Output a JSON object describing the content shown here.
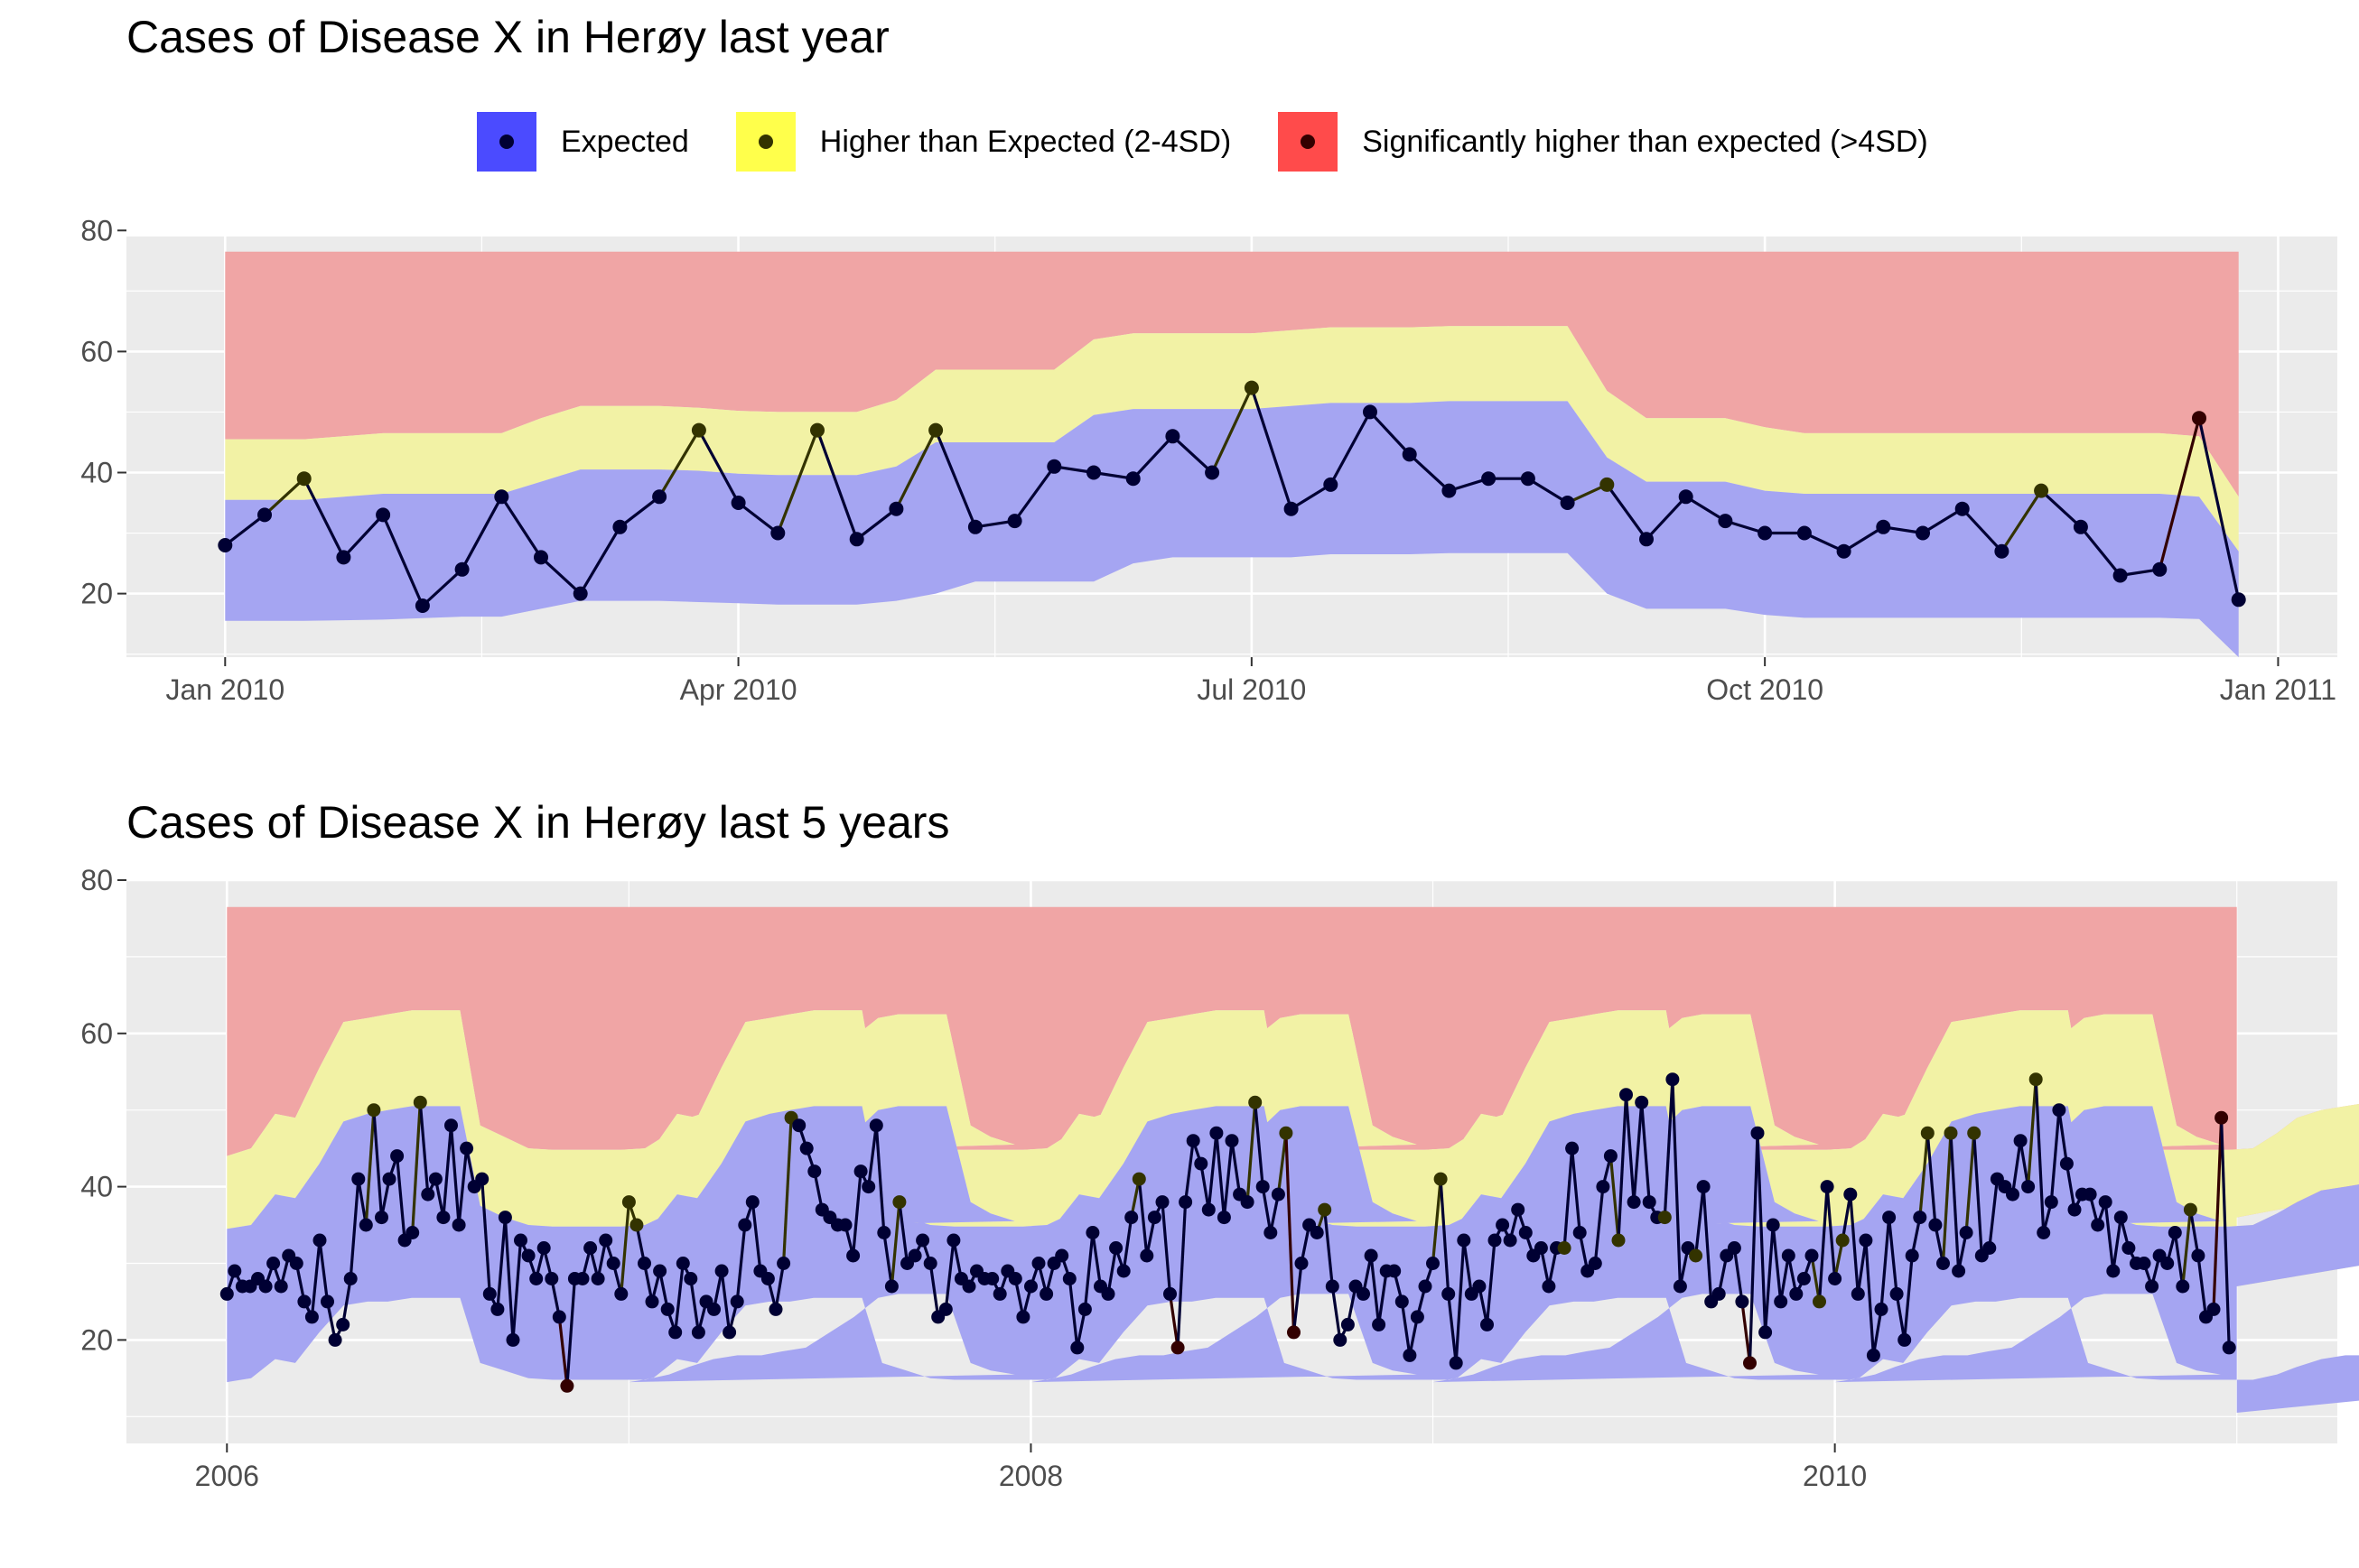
{
  "colors": {
    "panel_bg": "#EBEBEB",
    "grid": "#FFFFFF",
    "expected": "#4B4BFF",
    "higher": "#FFFF4B",
    "significant": "#FF4B4B",
    "expected_band": "#A5A5F2",
    "higher_band": "#F2F2A5",
    "significant_band": "#F0A5A5",
    "dot_expected": "#000033",
    "dot_higher": "#333300",
    "dot_significant": "#330000",
    "line": "#000033"
  },
  "legend": {
    "items": [
      {
        "label": "Expected",
        "key": "expected"
      },
      {
        "label": "Higher than Expected (2-4SD)",
        "key": "higher"
      },
      {
        "label": "Significantly higher than expected (>4SD)",
        "key": "significant"
      }
    ]
  },
  "chart_data": [
    {
      "type": "line",
      "title": "Cases of Disease X in Herøy last year",
      "xlabel": "",
      "ylabel": "",
      "x_axis": {
        "ticks": [
          "Jan 2010",
          "Apr 2010",
          "Jul 2010",
          "Oct 2010",
          "Jan 2011"
        ],
        "major_weeks": [
          0,
          13,
          26,
          39,
          52
        ],
        "minor_weeks": [
          6.5,
          19.5,
          32.5,
          45.5
        ],
        "xlim_weeks": [
          -2.5,
          53.5
        ]
      },
      "ylim": [
        9.5,
        79
      ],
      "y_ticks": [
        20,
        40,
        60,
        80
      ],
      "grid": true,
      "series": [
        {
          "key": "cases",
          "x_weeks": [
            0,
            1,
            2,
            3,
            4,
            5,
            6,
            7,
            8,
            9,
            10,
            11,
            12,
            13,
            14,
            15,
            16,
            17,
            18,
            19,
            20,
            21,
            22,
            23,
            24,
            25,
            26,
            27,
            28,
            29,
            30,
            31,
            32,
            33,
            34,
            35,
            36,
            37,
            38,
            39,
            40,
            41,
            42,
            43,
            44,
            45,
            46,
            47,
            48,
            49,
            50,
            51
          ],
          "values": [
            28,
            33,
            39,
            26,
            33,
            18,
            24,
            36,
            26,
            20,
            31,
            36,
            47,
            35,
            30,
            47,
            29,
            34,
            47,
            31,
            32,
            41,
            40,
            39,
            46,
            40,
            54,
            34,
            38,
            50,
            43,
            37,
            39,
            39,
            35,
            38,
            29,
            36,
            32,
            30,
            30,
            27,
            31,
            30,
            34,
            27,
            37,
            31,
            23,
            24,
            49,
            19
          ],
          "status": [
            "e",
            "e",
            "h",
            "e",
            "e",
            "e",
            "e",
            "e",
            "e",
            "e",
            "e",
            "e",
            "h",
            "e",
            "e",
            "h",
            "e",
            "e",
            "h",
            "e",
            "e",
            "e",
            "e",
            "e",
            "e",
            "e",
            "h",
            "e",
            "e",
            "e",
            "e",
            "e",
            "e",
            "e",
            "e",
            "h",
            "e",
            "e",
            "e",
            "e",
            "e",
            "e",
            "e",
            "e",
            "e",
            "e",
            "h",
            "e",
            "e",
            "e",
            "s",
            "e"
          ]
        }
      ],
      "bands": {
        "x_weeks": [
          0,
          2,
          4,
          6,
          7,
          8,
          9,
          10,
          11,
          12,
          13,
          14,
          15,
          16,
          17,
          18,
          19,
          20,
          21,
          22,
          23,
          24,
          25,
          26,
          27,
          28,
          29,
          30,
          31,
          32,
          33,
          34,
          35,
          36,
          37,
          38,
          39,
          40,
          41,
          42,
          43,
          44,
          45,
          46,
          47,
          48,
          49,
          50,
          51
        ],
        "lower": [
          15.5,
          15.5,
          15.7,
          16.2,
          16.2,
          17.5,
          18.8,
          18.8,
          18.8,
          18.6,
          18.4,
          18.2,
          18.2,
          18.2,
          18.8,
          20,
          22,
          22,
          22,
          22,
          25,
          26,
          26,
          26,
          26,
          26.5,
          26.5,
          26.5,
          26.7,
          26.7,
          26.7,
          26.7,
          20,
          17.5,
          17.5,
          17.5,
          16.5,
          16,
          16,
          16,
          16,
          16,
          16,
          16,
          16,
          16,
          16,
          15.8,
          9.5
        ],
        "mid": [
          35.5,
          35.5,
          36.5,
          36.5,
          36.5,
          38.5,
          40.5,
          40.5,
          40.5,
          40.3,
          39.8,
          39.6,
          39.6,
          39.6,
          41,
          45,
          45,
          45,
          45,
          49.5,
          50.5,
          50.5,
          50.5,
          50.5,
          51,
          51.5,
          51.5,
          51.5,
          51.8,
          51.8,
          51.8,
          51.8,
          42.5,
          38.5,
          38.5,
          38.5,
          37,
          36.5,
          36.5,
          36.5,
          36.5,
          36.5,
          36.5,
          36.5,
          36.5,
          36.5,
          36.5,
          36,
          27
        ],
        "upper": [
          45.5,
          45.5,
          46.5,
          46.5,
          46.5,
          49,
          51,
          51,
          51,
          50.7,
          50.2,
          50,
          50,
          50,
          52,
          57,
          57,
          57,
          57,
          62,
          63,
          63,
          63,
          63,
          63.5,
          64,
          64,
          64,
          64.2,
          64.2,
          64.2,
          64.2,
          53.5,
          49,
          49,
          49,
          47.5,
          46.5,
          46.5,
          46.5,
          46.5,
          46.5,
          46.5,
          46.5,
          46.5,
          46.5,
          46.5,
          46,
          36
        ],
        "top": 76.5
      }
    },
    {
      "type": "line",
      "title": "Cases of Disease X in Herøy last 5 years",
      "xlabel": "",
      "ylabel": "",
      "x_axis": {
        "ticks": [
          "2006",
          "2008",
          "2010"
        ],
        "major_years": [
          2006,
          2008,
          2010
        ],
        "minor_years": [
          2007,
          2009,
          2011
        ],
        "xlim_years": [
          2005.75,
          2011.25
        ]
      },
      "ylim": [
        6.5,
        80
      ],
      "y_ticks": [
        20,
        40,
        60,
        80
      ],
      "grid": true,
      "year_start": 2006,
      "series": [
        {
          "key": "cases",
          "weeks_per_year": 52,
          "values": [
            26,
            29,
            27,
            27,
            28,
            27,
            30,
            27,
            31,
            30,
            25,
            23,
            33,
            25,
            20,
            22,
            28,
            41,
            35,
            50,
            36,
            41,
            44,
            33,
            34,
            51,
            39,
            41,
            36,
            48,
            35,
            45,
            40,
            41,
            26,
            24,
            36,
            20,
            33,
            31,
            28,
            32,
            28,
            23,
            14,
            28,
            28,
            32,
            28,
            33,
            30,
            26,
            38,
            35,
            30,
            25,
            29,
            24,
            21,
            30,
            28,
            21,
            25,
            24,
            29,
            21,
            25,
            35,
            38,
            29,
            28,
            24,
            30,
            49,
            48,
            45,
            42,
            37,
            36,
            35,
            35,
            31,
            42,
            40,
            48,
            34,
            27,
            38,
            30,
            31,
            33,
            30,
            23,
            24,
            33,
            28,
            27,
            29,
            28,
            28,
            26,
            29,
            28,
            23,
            27,
            30,
            26,
            30,
            31,
            28,
            19,
            24,
            34,
            27,
            26,
            32,
            29,
            36,
            41,
            31,
            36,
            38,
            26,
            19,
            38,
            46,
            43,
            37,
            47,
            36,
            46,
            39,
            38,
            51,
            40,
            34,
            39,
            47,
            21,
            30,
            35,
            34,
            37,
            27,
            20,
            22,
            27,
            26,
            31,
            22,
            29,
            29,
            25,
            18,
            23,
            27,
            30,
            41,
            26,
            17,
            33,
            26,
            27,
            22,
            33,
            35,
            33,
            37,
            34,
            31,
            32,
            27,
            32,
            32,
            45,
            34,
            29,
            30,
            40,
            44,
            33,
            52,
            38,
            51,
            38,
            36,
            36,
            54,
            27,
            32,
            31,
            40,
            25,
            26,
            31,
            32,
            25,
            17,
            47,
            21,
            35,
            25,
            31,
            26,
            28,
            31,
            25,
            40,
            28,
            33,
            39,
            26,
            33,
            18,
            24,
            36,
            26,
            20,
            31,
            36,
            47,
            35,
            30,
            47,
            29,
            34,
            47,
            31,
            32,
            41,
            40,
            39,
            46,
            40,
            54,
            34,
            38,
            50,
            43,
            37,
            39,
            39,
            35,
            38,
            29,
            36,
            32,
            30,
            30,
            27,
            31,
            30,
            34,
            27,
            37,
            31,
            23,
            24,
            49,
            19
          ],
          "status": [
            "e",
            "e",
            "e",
            "e",
            "e",
            "e",
            "e",
            "e",
            "e",
            "e",
            "e",
            "e",
            "e",
            "e",
            "e",
            "e",
            "e",
            "e",
            "e",
            "h",
            "e",
            "e",
            "e",
            "e",
            "e",
            "h",
            "e",
            "e",
            "e",
            "e",
            "e",
            "e",
            "e",
            "e",
            "e",
            "e",
            "e",
            "e",
            "e",
            "e",
            "e",
            "e",
            "e",
            "e",
            "s",
            "e",
            "e",
            "e",
            "e",
            "e",
            "e",
            "e",
            "h",
            "h",
            "e",
            "e",
            "e",
            "e",
            "e",
            "e",
            "e",
            "e",
            "e",
            "e",
            "e",
            "e",
            "e",
            "e",
            "e",
            "e",
            "e",
            "e",
            "e",
            "h",
            "e",
            "e",
            "e",
            "e",
            "e",
            "e",
            "e",
            "e",
            "e",
            "e",
            "e",
            "e",
            "e",
            "h",
            "e",
            "e",
            "e",
            "e",
            "e",
            "e",
            "e",
            "e",
            "e",
            "e",
            "e",
            "e",
            "e",
            "e",
            "e",
            "e",
            "e",
            "e",
            "e",
            "e",
            "e",
            "e",
            "e",
            "e",
            "e",
            "e",
            "e",
            "e",
            "e",
            "e",
            "h",
            "e",
            "e",
            "e",
            "e",
            "s",
            "e",
            "e",
            "e",
            "e",
            "e",
            "e",
            "e",
            "e",
            "e",
            "h",
            "e",
            "e",
            "e",
            "h",
            "s",
            "e",
            "e",
            "e",
            "h",
            "e",
            "e",
            "e",
            "e",
            "e",
            "e",
            "e",
            "e",
            "e",
            "e",
            "e",
            "e",
            "e",
            "e",
            "h",
            "e",
            "e",
            "e",
            "e",
            "e",
            "e",
            "e",
            "e",
            "e",
            "e",
            "e",
            "e",
            "e",
            "e",
            "e",
            "h",
            "e",
            "e",
            "e",
            "e",
            "e",
            "e",
            "h",
            "e",
            "e",
            "e",
            "e",
            "e",
            "h",
            "e",
            "e",
            "e",
            "h",
            "e",
            "e",
            "e",
            "e",
            "e",
            "e",
            "s",
            "e",
            "e",
            "e",
            "e",
            "e",
            "e",
            "e",
            "e",
            "h",
            "e",
            "e",
            "h",
            "e",
            "e",
            "e",
            "e",
            "e",
            "e",
            "e",
            "e",
            "e",
            "e",
            "h",
            "e",
            "e",
            "h",
            "e",
            "e",
            "h",
            "e",
            "e",
            "e",
            "e",
            "e",
            "e",
            "e",
            "h",
            "e",
            "e",
            "e",
            "e",
            "e",
            "e",
            "e",
            "e",
            "e",
            "e",
            "e",
            "e",
            "e",
            "e",
            "e",
            "e",
            "e",
            "e",
            "e",
            "h",
            "e",
            "e",
            "e",
            "s",
            "e"
          ]
        }
      ],
      "bands": {
        "x_years": [
          2006.0,
          2006.06,
          2006.12,
          2006.17,
          2006.23,
          2006.29,
          2006.35,
          2006.4,
          2006.46,
          2006.52,
          2006.58,
          2006.63,
          2006.69,
          2006.75,
          2006.81,
          2006.87,
          2006.92,
          2006.98,
          2007.04,
          2007.1,
          2007.15,
          2007.21,
          2007.27,
          2007.33,
          2007.38,
          2007.44,
          2007.5,
          2007.56,
          2007.62,
          2007.67,
          2007.73,
          2007.79,
          2007.85,
          2007.9,
          2007.96
        ],
        "lower": [
          14.5,
          15,
          17.5,
          17,
          21,
          24.5,
          25,
          25,
          25.5,
          25.5,
          25.5,
          17,
          16,
          15,
          14.8,
          14.8,
          14.8,
          14.8,
          14.8,
          15.5,
          16.5,
          17.5,
          18,
          18,
          18.5,
          19,
          21,
          23,
          25.5,
          26,
          26,
          26,
          17,
          16,
          15.5
        ],
        "mid": [
          34.5,
          35,
          39,
          38.5,
          43,
          48.5,
          49.5,
          50,
          50.5,
          50.5,
          50.5,
          37.5,
          36,
          35,
          34.8,
          34.8,
          34.8,
          34.8,
          35,
          36.5,
          38,
          39.5,
          40,
          40.5,
          41,
          42.5,
          45,
          47,
          50,
          50.5,
          50.5,
          50.5,
          38,
          36.5,
          35.5
        ],
        "upper": [
          44,
          45,
          49.5,
          49,
          55.5,
          61.5,
          62,
          62.5,
          63,
          63,
          63,
          48,
          46.5,
          45,
          44.8,
          44.8,
          44.8,
          44.8,
          45,
          47,
          49,
          50,
          50.5,
          51,
          52,
          54.5,
          57,
          59.5,
          62,
          62.5,
          62.5,
          62.5,
          48,
          46.5,
          45.5
        ],
        "top": 76.5
      }
    }
  ]
}
